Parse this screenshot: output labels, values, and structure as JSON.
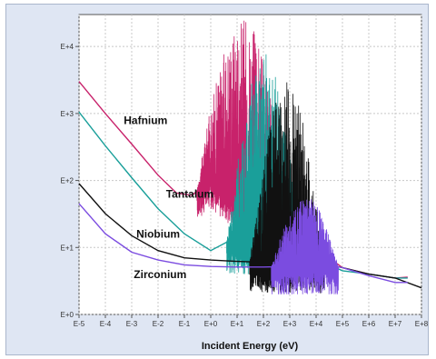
{
  "chart_data": {
    "type": "line",
    "title": "",
    "xlabel": "Incident Energy (eV)",
    "ylabel": "",
    "x_scale": "log",
    "y_scale": "log",
    "xlim": [
      1e-05,
      100000000.0
    ],
    "ylim": [
      1,
      30000
    ],
    "x_ticks": [
      {
        "value": 1e-05,
        "label": "E-5"
      },
      {
        "value": 0.0001,
        "label": "E-4"
      },
      {
        "value": 0.001,
        "label": "E-3"
      },
      {
        "value": 0.01,
        "label": "E-2"
      },
      {
        "value": 0.1,
        "label": "E-1"
      },
      {
        "value": 1,
        "label": "E+0"
      },
      {
        "value": 10,
        "label": "E+1"
      },
      {
        "value": 100,
        "label": "E+2"
      },
      {
        "value": 1000,
        "label": "E+3"
      },
      {
        "value": 10000,
        "label": "E+4"
      },
      {
        "value": 100000,
        "label": "E+5"
      },
      {
        "value": 1000000,
        "label": "E+6"
      },
      {
        "value": 10000000,
        "label": "E+7"
      },
      {
        "value": 100000000,
        "label": "E+8"
      }
    ],
    "y_ticks": [
      {
        "value": 1,
        "label": "E+0"
      },
      {
        "value": 10,
        "label": "E+1"
      },
      {
        "value": 100,
        "label": "E+2"
      },
      {
        "value": 1000,
        "label": "E+3"
      },
      {
        "value": 10000,
        "label": "E+4"
      }
    ],
    "grid": true,
    "colors": {
      "frame_bg": "#dfe6f3",
      "plot_bg": "#ffffff",
      "grid": "#c8c8c8"
    },
    "series": [
      {
        "name": "Hafnium",
        "color": "#c8226b",
        "points": [
          [
            1e-05,
            3000
          ],
          [
            0.0001,
            1000
          ],
          [
            0.001,
            350
          ],
          [
            0.01,
            120
          ],
          [
            0.05,
            65
          ],
          [
            0.2,
            60
          ],
          [
            0.6,
            90
          ],
          [
            1,
            110
          ],
          [
            5,
            60
          ],
          [
            30,
            35
          ],
          [
            200,
            22
          ],
          [
            2000,
            12
          ],
          [
            20000,
            8
          ],
          [
            100000,
            5
          ],
          [
            1000000,
            4
          ],
          [
            10000000,
            3.5
          ],
          [
            30000000,
            3.6
          ]
        ],
        "resonance": {
          "range": [
            0.3,
            1000
          ],
          "max": 28000,
          "min": 18
        }
      },
      {
        "name": "Tantalum",
        "color": "#1a9f9a",
        "points": [
          [
            1e-05,
            1050
          ],
          [
            0.0001,
            330
          ],
          [
            0.001,
            110
          ],
          [
            0.01,
            38
          ],
          [
            0.1,
            16
          ],
          [
            1,
            9
          ],
          [
            4,
            12
          ],
          [
            20,
            10
          ],
          [
            200,
            8
          ],
          [
            2000,
            7
          ],
          [
            20000,
            6
          ],
          [
            100000,
            4.5
          ],
          [
            1000000,
            4
          ],
          [
            10000000,
            3.5
          ],
          [
            30000000,
            3.5
          ]
        ],
        "resonance": {
          "range": [
            4,
            3000
          ],
          "max": 8000,
          "min": 4
        }
      },
      {
        "name": "Niobium",
        "color": "#111111",
        "points": [
          [
            1e-05,
            90
          ],
          [
            0.0001,
            32
          ],
          [
            0.001,
            15
          ],
          [
            0.01,
            9
          ],
          [
            0.1,
            7
          ],
          [
            1,
            6.5
          ],
          [
            10,
            6.2
          ],
          [
            100,
            6
          ],
          [
            1000,
            5.8
          ],
          [
            10000,
            6
          ],
          [
            100000,
            5
          ],
          [
            1000000,
            4
          ],
          [
            10000000,
            3.5
          ],
          [
            100000000,
            2.5
          ]
        ],
        "resonance": {
          "range": [
            30,
            20000
          ],
          "max": 3000,
          "min": 2
        }
      },
      {
        "name": "Zirconium",
        "color": "#7b4ce0",
        "points": [
          [
            1e-05,
            45
          ],
          [
            0.0001,
            16
          ],
          [
            0.001,
            8.5
          ],
          [
            0.01,
            6.5
          ],
          [
            0.1,
            5.5
          ],
          [
            1,
            5.2
          ],
          [
            10,
            5.1
          ],
          [
            100,
            5.1
          ],
          [
            1000,
            5.2
          ],
          [
            10000,
            6
          ],
          [
            100000,
            5
          ],
          [
            1000000,
            3.8
          ],
          [
            10000000,
            3
          ],
          [
            30000000,
            3
          ]
        ],
        "resonance": {
          "range": [
            200,
            70000
          ],
          "max": 60,
          "min": 2
        }
      }
    ],
    "annotations": [
      {
        "text": "Hafnium",
        "x": 0.0005,
        "y": 700
      },
      {
        "text": "Tantalum",
        "x": 0.02,
        "y": 55
      },
      {
        "text": "Niobium",
        "x": 0.0015,
        "y": 14
      },
      {
        "text": "Zirconium",
        "x": 0.0012,
        "y": 3.5
      }
    ]
  }
}
